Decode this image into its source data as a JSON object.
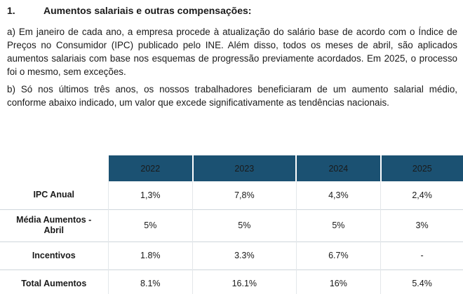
{
  "section": {
    "number": "1.",
    "title": "Aumentos salariais e outras compensações:"
  },
  "paragraphs": [
    "a) Em janeiro de cada ano, a empresa procede à atualização do salário base de acordo com o Índice de Preços no Consumidor (IPC) publicado pelo INE. Além disso, todos os meses de abril, são aplicados aumentos salariais com base nos esquemas de progressão previamente acordados. Em 2025, o processo foi o mesmo, sem exceções.",
    "b) Só nos últimos três anos, os nossos trabalhadores beneficiaram de um aumento salarial médio, conforme abaixo indicado, um valor que excede significativamente as tendências nacionais."
  ],
  "table": {
    "years": [
      "2022",
      "2023",
      "2024",
      "2025"
    ],
    "rows": [
      {
        "label": "IPC Anual",
        "values": [
          "1,3%",
          "7,8%",
          "4,3%",
          "2,4%"
        ]
      },
      {
        "label": "Média Aumentos - Abril",
        "values": [
          "5%",
          "5%",
          "5%",
          "3%"
        ]
      },
      {
        "label": "Incentivos",
        "values": [
          "1.8%",
          "3.3%",
          "6.7%",
          "-"
        ]
      },
      {
        "label": "Total Aumentos",
        "values": [
          "8.1%",
          "16.1%",
          "16%",
          "5.4%"
        ]
      }
    ]
  },
  "colors": {
    "header_band": "#1b5172"
  }
}
